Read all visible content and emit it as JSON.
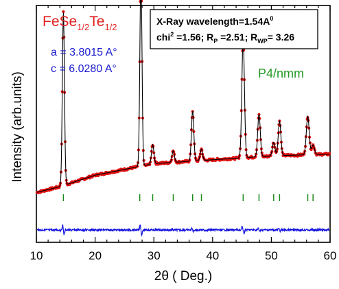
{
  "chart_data": {
    "type": "line",
    "xlabel": "2θ  ( Deg.)",
    "ylabel": "Intensity (arb.units)",
    "xlim": [
      10,
      60
    ],
    "x_ticks": [
      10,
      20,
      30,
      40,
      50,
      60
    ],
    "y_ticks_shown": false,
    "legend": "none",
    "compound": {
      "base1": "FeSe",
      "sub1": "1/2",
      "base2": "Te",
      "sub2": "1/2"
    },
    "lattice": {
      "a": "a = 3.8015 A°",
      "c": "c = 6.0280 A°"
    },
    "space_group": "P4/nmm",
    "info_box": {
      "line1": "X-Ray wavelength=1.54A",
      "line1_sup": "0",
      "chi_label": "chi",
      "chi_sup": "2",
      "chi_rest": " =1.56; R",
      "rp_sub": "P",
      "rp_rest": " =2.51; R",
      "rwp_sub": "WP",
      "rwp_rest": "= 3.26"
    },
    "colors": {
      "observed": "#e01010",
      "calculated": "#000000",
      "difference": "#1010e0",
      "bragg": "#1a8a1a",
      "compound": "#e02020",
      "lattice": "#1a1ad0",
      "space_group": "#229922"
    },
    "background": {
      "points": [
        [
          10,
          0.07
        ],
        [
          14,
          0.1
        ],
        [
          20,
          0.16
        ],
        [
          25,
          0.19
        ],
        [
          30,
          0.22
        ],
        [
          35,
          0.23
        ],
        [
          40,
          0.24
        ],
        [
          45,
          0.25
        ],
        [
          50,
          0.26
        ],
        [
          55,
          0.265
        ],
        [
          60,
          0.27
        ]
      ]
    },
    "peaks": [
      {
        "x": 14.6,
        "intensity": 0.9,
        "width": 0.18
      },
      {
        "x": 27.8,
        "intensity": 1.0,
        "width": 0.18
      },
      {
        "x": 29.8,
        "intensity": 0.1,
        "width": 0.2
      },
      {
        "x": 33.3,
        "intensity": 0.06,
        "width": 0.2
      },
      {
        "x": 36.6,
        "intensity": 0.26,
        "width": 0.2
      },
      {
        "x": 38.1,
        "intensity": 0.06,
        "width": 0.2
      },
      {
        "x": 45.2,
        "intensity": 0.62,
        "width": 0.22
      },
      {
        "x": 47.9,
        "intensity": 0.22,
        "width": 0.22
      },
      {
        "x": 50.4,
        "intensity": 0.07,
        "width": 0.22
      },
      {
        "x": 51.4,
        "intensity": 0.18,
        "width": 0.22
      },
      {
        "x": 56.2,
        "intensity": 0.2,
        "width": 0.24
      },
      {
        "x": 57.1,
        "intensity": 0.05,
        "width": 0.24
      }
    ],
    "bragg_positions": [
      14.6,
      27.6,
      29.8,
      33.3,
      36.6,
      38.1,
      45.2,
      47.9,
      50.4,
      51.4,
      56.2,
      57.1
    ]
  }
}
